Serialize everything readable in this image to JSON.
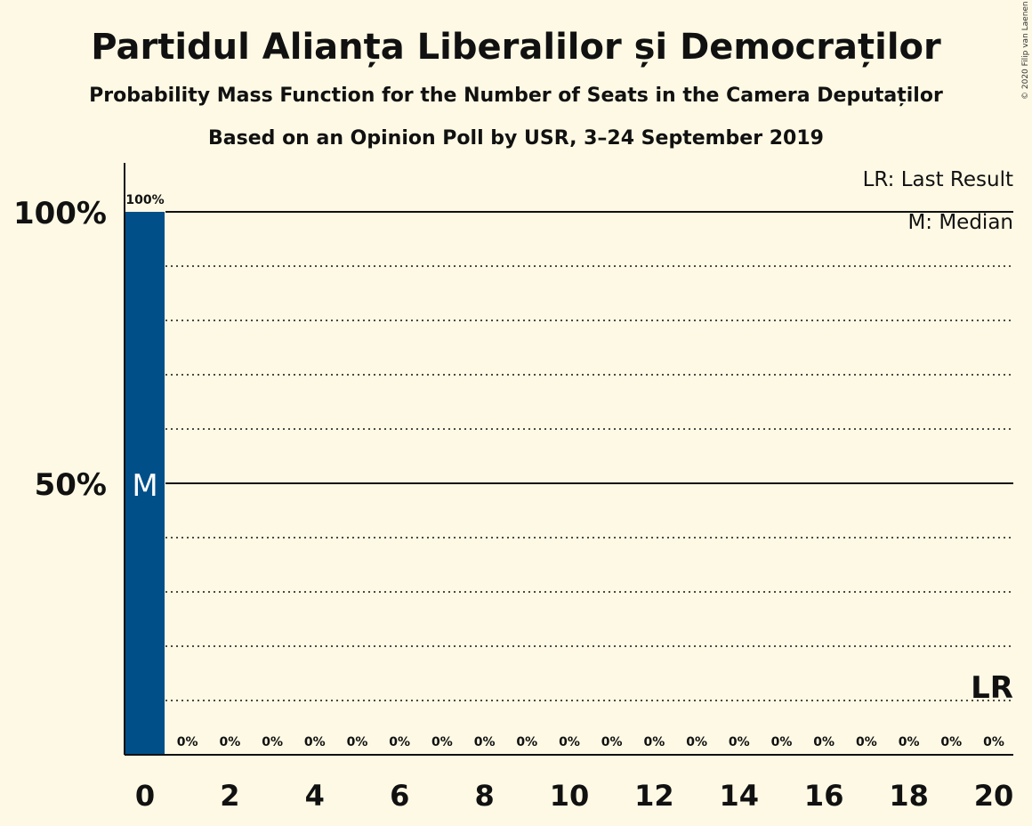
{
  "chart_data": {
    "type": "bar",
    "title": "Partidul Alianța Liberalilor și Democraților",
    "subtitle": "Probability Mass Function for the Number of Seats in the Camera Deputaților",
    "subtitle2": "Based on an Opinion Poll by USR, 3–24 September 2019",
    "copyright": "© 2020 Filip van Laenen",
    "legend": {
      "placement": "top-right",
      "last_result": "LR: Last Result",
      "median": "M: Median"
    },
    "x": [
      0,
      1,
      2,
      3,
      4,
      5,
      6,
      7,
      8,
      9,
      10,
      11,
      12,
      13,
      14,
      15,
      16,
      17,
      18,
      19,
      20
    ],
    "x_ticks": [
      0,
      2,
      4,
      6,
      8,
      10,
      12,
      14,
      16,
      18,
      20
    ],
    "values": [
      100,
      0,
      0,
      0,
      0,
      0,
      0,
      0,
      0,
      0,
      0,
      0,
      0,
      0,
      0,
      0,
      0,
      0,
      0,
      0,
      0
    ],
    "value_labels": [
      "100%",
      "0%",
      "0%",
      "0%",
      "0%",
      "0%",
      "0%",
      "0%",
      "0%",
      "0%",
      "0%",
      "0%",
      "0%",
      "0%",
      "0%",
      "0%",
      "0%",
      "0%",
      "0%",
      "0%",
      "0%"
    ],
    "ylim": [
      0,
      100
    ],
    "y_major_ticks": [
      {
        "value": 50,
        "label": "50%"
      },
      {
        "value": 100,
        "label": "100%"
      }
    ],
    "y_minor_step": 10,
    "median_seat": 0,
    "median_marker": "M",
    "median_marker_value": 50,
    "last_result_seat": 20,
    "last_result_marker": "LR",
    "last_result_value": 10,
    "colors": {
      "bar": "#004f89",
      "background": "#fdf9e4",
      "text": "#111111",
      "median_text": "#ffffff"
    }
  }
}
